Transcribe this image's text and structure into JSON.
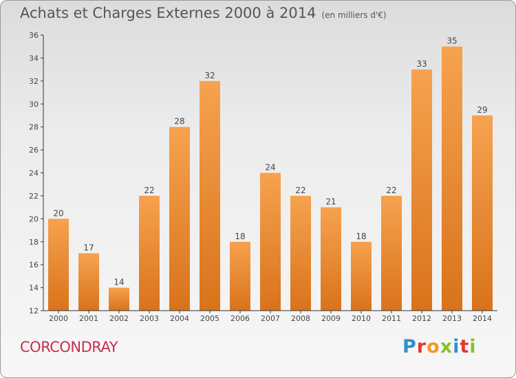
{
  "header": {
    "title": "Achats et Charges Externes 2000 à 2014",
    "unit": "(en milliers d'€)"
  },
  "footer": {
    "commune": "CORCONDRAY",
    "logo": "Proxiti",
    "logo_colors": [
      "#2e8fcf",
      "#e0392b",
      "#f29a1f",
      "#8cbf2a",
      "#2e8fcf",
      "#e0392b",
      "#8cbf2a"
    ]
  },
  "colors": {
    "bar_top": "#f6a24f",
    "bar_bottom": "#d9731b",
    "axis": "#333333",
    "grid": "#d8d8d8"
  },
  "chart_data": {
    "type": "bar",
    "title": "Achats et Charges Externes 2000 à 2014",
    "subtitle": "(en milliers d'€)",
    "xlabel": "",
    "ylabel": "",
    "categories": [
      "2000",
      "2001",
      "2002",
      "2003",
      "2004",
      "2005",
      "2006",
      "2007",
      "2008",
      "2009",
      "2010",
      "2011",
      "2012",
      "2013",
      "2014"
    ],
    "values": [
      20,
      17,
      14,
      22,
      28,
      32,
      18,
      24,
      22,
      21,
      18,
      22,
      33,
      35,
      29
    ],
    "ylim": [
      12,
      36
    ],
    "yticks": [
      12,
      14,
      16,
      18,
      20,
      22,
      24,
      26,
      28,
      30,
      32,
      34,
      36
    ],
    "grid": false,
    "data_labels": true
  }
}
